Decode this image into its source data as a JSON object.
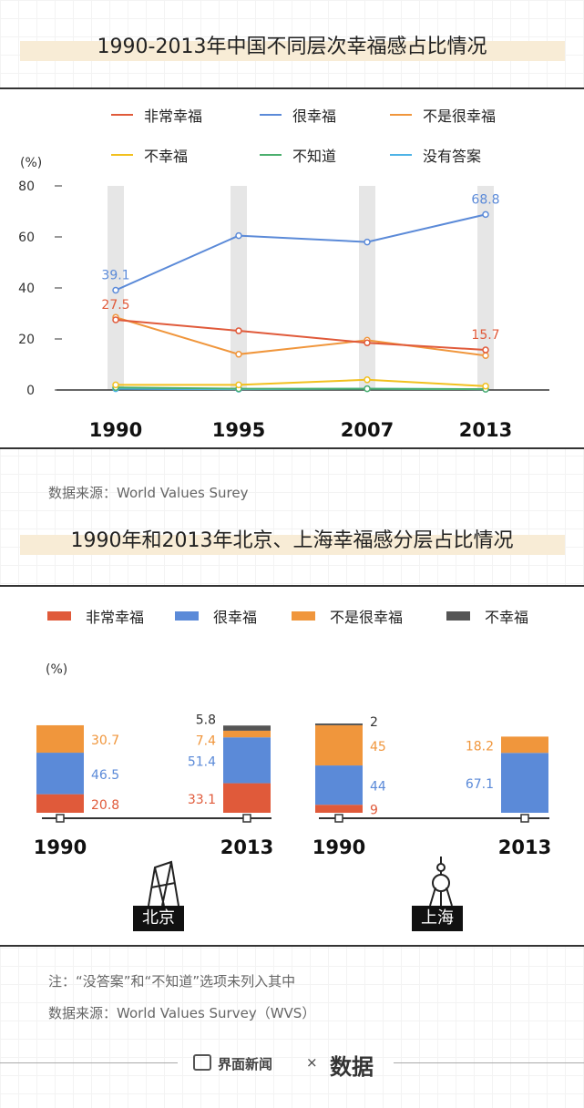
{
  "chart1": {
    "title": "1990-2013年中国不同层次幸福感占比情况",
    "unit": "(%)",
    "source": "数据来源：World Values Surey",
    "chart_data": {
      "type": "line",
      "x": [
        "1990",
        "1995",
        "2007",
        "2013"
      ],
      "ylim": [
        0,
        80
      ],
      "yticks": [
        "0",
        "20",
        "40",
        "60",
        "80"
      ],
      "series": [
        {
          "name": "非常幸福",
          "color": "#e05a3a",
          "values": [
            27.5,
            23.2,
            18.5,
            15.7
          ]
        },
        {
          "name": "很幸福",
          "color": "#5b8ad8",
          "values": [
            39.1,
            60.5,
            58.0,
            68.8
          ]
        },
        {
          "name": "不是很幸福",
          "color": "#f0963c",
          "values": [
            28.5,
            14.0,
            19.5,
            13.5
          ]
        },
        {
          "name": "不幸福",
          "color": "#f2c01e",
          "values": [
            2.0,
            2.0,
            4.0,
            1.5
          ]
        },
        {
          "name": "不知道",
          "color": "#4caf6e",
          "values": [
            1.0,
            0.5,
            0.5,
            0.3
          ]
        },
        {
          "name": "没有答案",
          "color": "#4eb3e6",
          "values": [
            0.5,
            0.3,
            0.5,
            0.3
          ]
        }
      ],
      "annotations": [
        {
          "series": "很幸福",
          "x": "1990",
          "text": "39.1"
        },
        {
          "series": "很幸福",
          "x": "2013",
          "text": "68.8"
        },
        {
          "series": "非常幸福",
          "x": "1990",
          "text": "27.5"
        },
        {
          "series": "非常幸福",
          "x": "2013",
          "text": "15.7"
        }
      ],
      "grid": false
    }
  },
  "chart2": {
    "title": "1990年和2013年北京、上海幸福感分层占比情况",
    "unit": "(%)",
    "chart_data": {
      "type": "bar",
      "stacked": true,
      "legend": [
        {
          "name": "非常幸福",
          "color": "#e05a3a"
        },
        {
          "name": "很幸福",
          "color": "#5b8ad8"
        },
        {
          "name": "不是很幸福",
          "color": "#f0963c"
        },
        {
          "name": "不幸福",
          "color": "#555555"
        }
      ],
      "groups": [
        {
          "city": "北京",
          "year": "1990",
          "segments": [
            {
              "name": "非常幸福",
              "value": 20.8,
              "label": "20.8"
            },
            {
              "name": "很幸福",
              "value": 46.5,
              "label": "46.5"
            },
            {
              "name": "不是很幸福",
              "value": 30.7,
              "label": "30.7"
            }
          ]
        },
        {
          "city": "北京",
          "year": "2013",
          "segments": [
            {
              "name": "非常幸福",
              "value": 33.1,
              "label": "33.1"
            },
            {
              "name": "很幸福",
              "value": 51.4,
              "label": "51.4"
            },
            {
              "name": "不是很幸福",
              "value": 7.4,
              "label": "7.4"
            },
            {
              "name": "不幸福",
              "value": 5.8,
              "label": "5.8"
            }
          ]
        },
        {
          "city": "上海",
          "year": "1990",
          "segments": [
            {
              "name": "非常幸福",
              "value": 9,
              "label": "9"
            },
            {
              "name": "很幸福",
              "value": 44,
              "label": "44"
            },
            {
              "name": "不是很幸福",
              "value": 45,
              "label": "45"
            },
            {
              "name": "不幸福",
              "value": 2,
              "label": "2"
            }
          ]
        },
        {
          "city": "上海",
          "year": "2013",
          "segments": [
            {
              "name": "很幸福",
              "value": 67.1,
              "label": "67.1"
            },
            {
              "name": "不是很幸福",
              "value": 18.2,
              "label": "18.2"
            }
          ]
        }
      ]
    },
    "city_labels": [
      "北京",
      "上海"
    ],
    "note": "注：“没答案”和“不知道”选项未列入其中",
    "source": "数据来源：World Values Survey（WVS）"
  },
  "footer": {
    "brand": "界面新闻",
    "separator": "×",
    "partner": "数据"
  },
  "watermark_text": "数据"
}
